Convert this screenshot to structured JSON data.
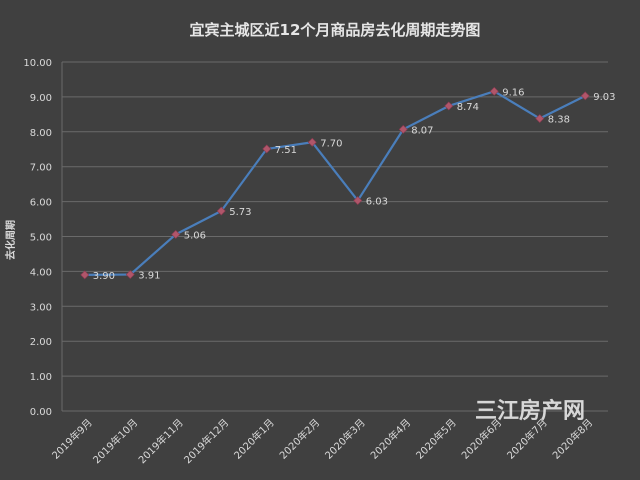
{
  "chart_data": {
    "type": "line",
    "title": "宜宾主城区近12个月商品房去化周期走势图",
    "ylabel": "去化周期",
    "xlabel": "",
    "categories": [
      "2019年9月",
      "2019年10月",
      "2019年11月",
      "2019年12月",
      "2020年1月",
      "2020年2月",
      "2020年3月",
      "2020年4月",
      "2020年5月",
      "2020年6月",
      "2020年7月",
      "2020年8月"
    ],
    "series": [
      {
        "values": [
          3.9,
          3.91,
          5.06,
          5.73,
          7.51,
          7.7,
          6.03,
          8.07,
          8.74,
          9.16,
          8.38,
          9.03
        ]
      }
    ],
    "data_labels": [
      "3.90",
      "3.91",
      "5.06",
      "5.73",
      "7.51",
      "7.70",
      "6.03",
      "8.07",
      "8.74",
      "9.16",
      "8.38",
      "9.03"
    ],
    "y_ticks": [
      "0.00",
      "1.00",
      "2.00",
      "3.00",
      "4.00",
      "5.00",
      "6.00",
      "7.00",
      "8.00",
      "9.00",
      "10.00"
    ],
    "ylim": [
      0,
      10
    ],
    "grid": true,
    "legend": "none",
    "colors": {
      "background": "#404040",
      "line": "#4a7ebb",
      "marker": "#b0566a",
      "text": "#d9d9d9",
      "grid": "#6a6a6a",
      "title": "#e6e6e6"
    }
  },
  "watermark": "三江房产网"
}
